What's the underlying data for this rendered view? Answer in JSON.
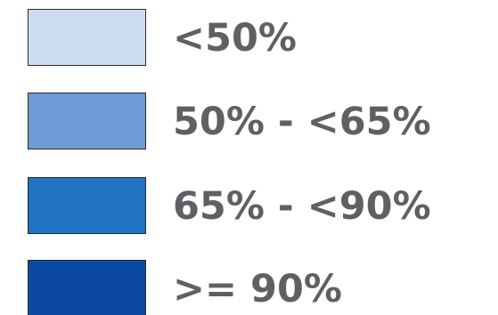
{
  "legend": {
    "items": [
      {
        "label": "<50%",
        "color": "#cddcf1"
      },
      {
        "label": "50% - <65%",
        "color": "#6f9bd6"
      },
      {
        "label": "65% - <90%",
        "color": "#1f73c0"
      },
      {
        "label": ">= 90%",
        "color": "#0b4aa0"
      }
    ]
  }
}
